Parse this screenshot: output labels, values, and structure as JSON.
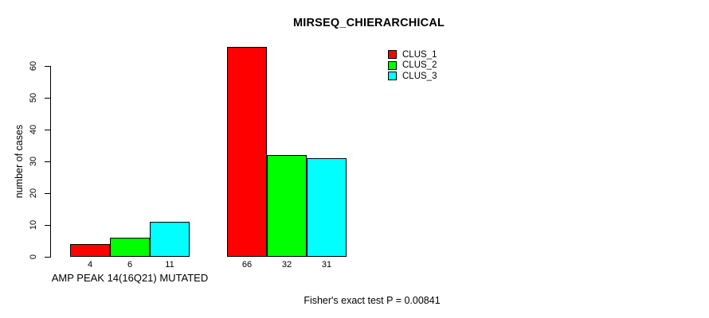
{
  "chart_data": {
    "type": "bar",
    "title": "MIRSEQ_CHIERARCHICAL",
    "ylabel": "number of cases",
    "xlabel": "",
    "ylim": [
      0,
      66
    ],
    "yticks": [
      0,
      10,
      20,
      30,
      40,
      50,
      60
    ],
    "grid": false,
    "categories": [
      "AMP PEAK 14(16Q21) MUTATED",
      ""
    ],
    "series": [
      {
        "name": "CLUS_1",
        "color": "#ff0000",
        "values": [
          4,
          66
        ]
      },
      {
        "name": "CLUS_2",
        "color": "#00ff00",
        "values": [
          6,
          32
        ]
      },
      {
        "name": "CLUS_3",
        "color": "#00ffff",
        "values": [
          11,
          31
        ]
      }
    ],
    "bar_value_labels": [
      [
        4,
        6,
        11
      ],
      [
        66,
        32,
        31
      ]
    ],
    "legend": {
      "position": "top-right",
      "entries": [
        "CLUS_1",
        "CLUS_2",
        "CLUS_3"
      ]
    },
    "annotation": "Fisher's exact test P = 0.00841"
  }
}
